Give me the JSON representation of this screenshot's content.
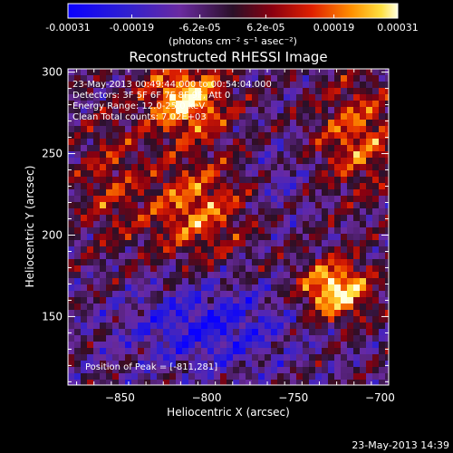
{
  "colorbar": {
    "ticks": [
      "-0.00031",
      "-0.00019",
      "-6.2e-05",
      "6.2e-05",
      "0.00019",
      "0.00031"
    ],
    "tick_values": [
      -0.00031,
      -0.00019,
      -6.2e-05,
      6.2e-05,
      0.00019,
      0.00031
    ],
    "range": [
      -0.00031,
      0.00031
    ],
    "unit_label": "(photons cm⁻² s⁻¹ asec⁻²)"
  },
  "chart_data": {
    "type": "heatmap",
    "title": "Reconstructed RHESSI Image",
    "xlabel": "Heliocentric X (arcsec)",
    "ylabel": "Heliocentric Y (arcsec)",
    "xlim": [
      -880,
      -695
    ],
    "ylim": [
      108,
      302
    ],
    "xticks": [
      -850,
      -800,
      -750,
      -700
    ],
    "yticks": [
      150,
      200,
      250,
      300
    ],
    "peak": [
      -811,
      281
    ],
    "annotations": [
      "23-May-2013 00:49:44.000 to 00:54:04.000",
      "Detectors: 3F 5F 6F 7F 8F 9F, Att 0",
      "Energy Range: 12.0-25.0 keV",
      "Clean     Total counts: 7.02E+03"
    ],
    "peak_label": "Position of Peak = [-811,281]"
  },
  "footer": {
    "datetime": "23-May-2013 14:39"
  },
  "colors": {
    "background": "#000000",
    "text": "#ffffff"
  }
}
